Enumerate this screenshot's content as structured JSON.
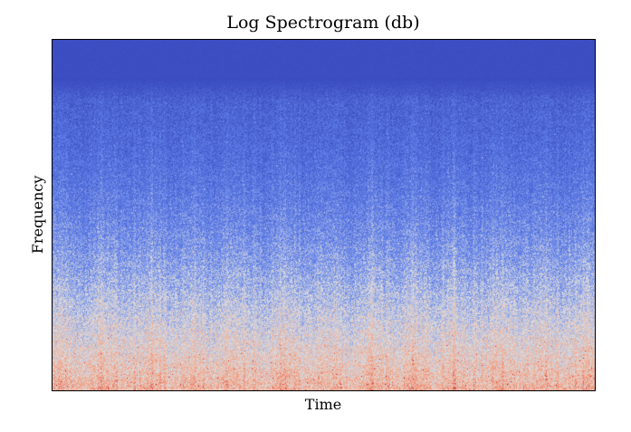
{
  "chart_data": {
    "type": "heatmap",
    "title": "Log Spectrogram (db)",
    "xlabel": "Time",
    "ylabel": "Frequency",
    "colormap": "coolwarm",
    "grid": false,
    "legend": "none",
    "x_tick_labels": [],
    "y_tick_labels": [],
    "colors": {
      "low": "#3b4cc0",
      "mid": "#dddddd",
      "high": "#b40426",
      "background": "#ffffff",
      "frame": "#000000"
    }
  }
}
